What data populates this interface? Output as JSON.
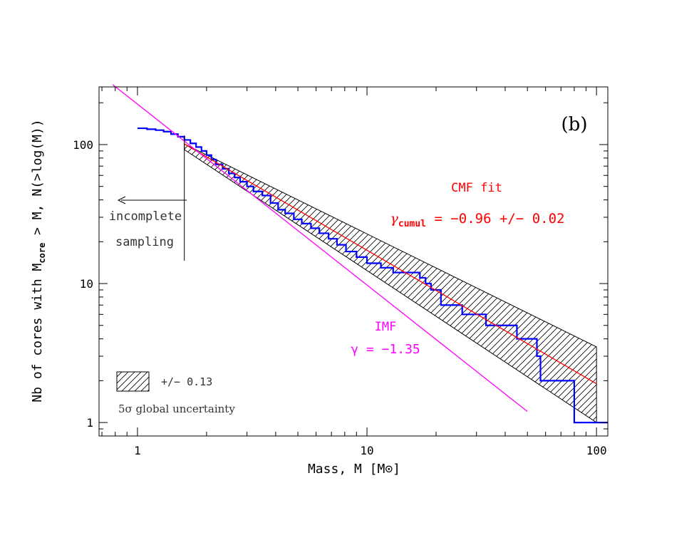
{
  "chart_data": {
    "type": "line",
    "panel_label": "(b)",
    "xlabel": "Mass, M [M⊙]",
    "ylabel_main": "Nb of cores with M",
    "ylabel_sub": "core",
    "ylabel_rest": " > M, N(>log(M))",
    "x_scale": "log",
    "y_scale": "log",
    "xlim": [
      0.68,
      112
    ],
    "ylim": [
      0.8,
      260
    ],
    "x_ticks": [
      1,
      10,
      100
    ],
    "x_tick_labels": [
      "1",
      "10",
      "100"
    ],
    "y_ticks": [
      1,
      10,
      100
    ],
    "y_tick_labels": [
      "1",
      "10",
      "100"
    ],
    "grid": false,
    "series": [
      {
        "name": "CMF (cumulative)",
        "color": "#0000ff",
        "style": "step",
        "x": [
          1.0,
          1.1,
          1.2,
          1.3,
          1.4,
          1.5,
          1.6,
          1.7,
          1.8,
          1.9,
          2.0,
          2.1,
          2.2,
          2.35,
          2.5,
          2.65,
          2.8,
          3.0,
          3.2,
          3.5,
          3.8,
          4.1,
          4.4,
          4.8,
          5.2,
          5.7,
          6.2,
          6.8,
          7.4,
          8.1,
          9.0,
          10.0,
          11.5,
          13.0,
          15.0,
          17.0,
          18.0,
          19.0,
          21.0,
          26.0,
          33.0,
          45.0,
          55.0,
          57.0,
          80.0,
          112.0
        ],
        "y": [
          131,
          129,
          127,
          124,
          119,
          114,
          108,
          102,
          96,
          90,
          84,
          78,
          72,
          67,
          62,
          58,
          54,
          50,
          46,
          43,
          38,
          34,
          32,
          29,
          27,
          25,
          23,
          21,
          19,
          17,
          15.5,
          14,
          13,
          12,
          12,
          11,
          10,
          9,
          7,
          6,
          5,
          4,
          3,
          2,
          1,
          1
        ]
      },
      {
        "name": "CMF fit",
        "color": "#ff0000",
        "style": "line",
        "x": [
          1.6,
          100
        ],
        "y": [
          101,
          1.9
        ]
      },
      {
        "name": "IMF",
        "color": "#ff00ff",
        "style": "line",
        "x": [
          0.78,
          50
        ],
        "y": [
          270,
          1.2
        ]
      }
    ],
    "uncertainty_band": {
      "color": "#000000",
      "upper": {
        "x": [
          1.6,
          100
        ],
        "y": [
          101,
          3.5
        ]
      },
      "lower": {
        "x": [
          1.6,
          100
        ],
        "y": [
          92,
          1.0
        ]
      }
    },
    "annotations": {
      "cmf_fit_title": "CMF fit",
      "cmf_fit_gamma_symbol": "γ",
      "cmf_fit_gamma_sub": "cumul",
      "cmf_fit_value": " = −0.96 +/− 0.02",
      "imf_title": "IMF",
      "imf_value": "γ = −1.35",
      "incomplete_line1": "incomplete",
      "incomplete_line2": "sampling",
      "completeness_mass": 1.6,
      "legend_band_label": "+/− 0.13",
      "legend_uncertainty": "5σ global uncertainty"
    }
  }
}
